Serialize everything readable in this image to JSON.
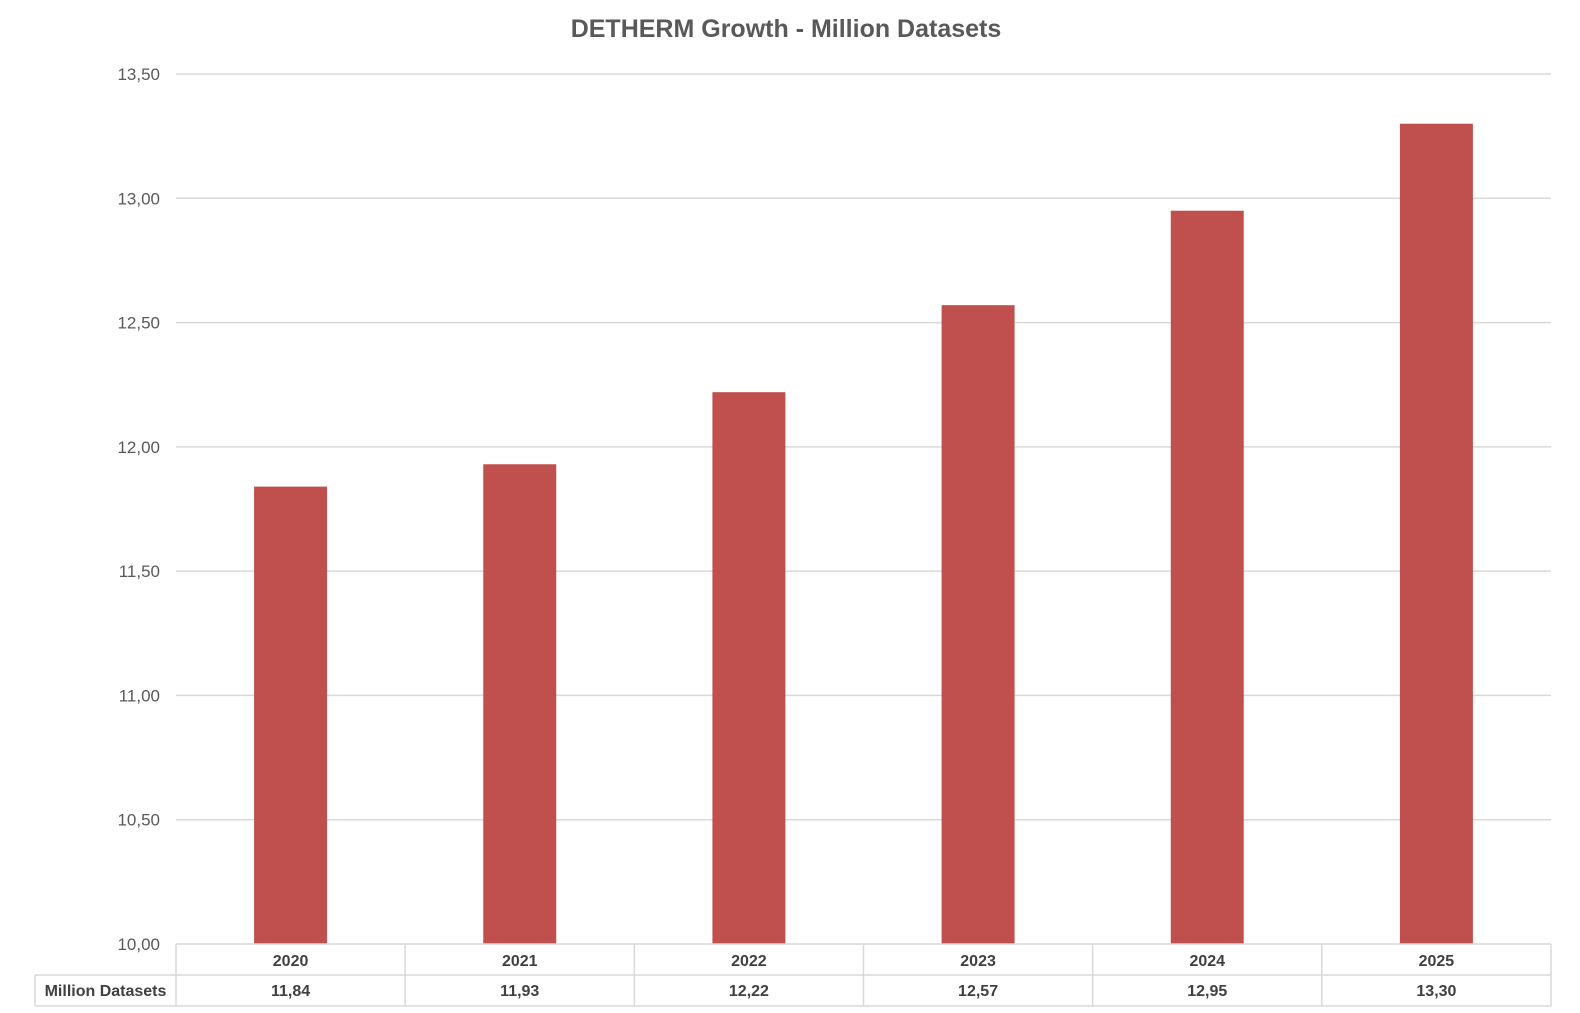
{
  "chart_data": {
    "type": "bar",
    "title": "DETHERM Growth - Million Datasets",
    "categories": [
      "2020",
      "2021",
      "2022",
      "2023",
      "2024",
      "2025"
    ],
    "series": [
      {
        "name": "Million Datasets",
        "values": [
          11.84,
          11.93,
          12.22,
          12.57,
          12.95,
          13.3
        ],
        "labels": [
          "11,84",
          "11,93",
          "12,22",
          "12,57",
          "12,95",
          "13,30"
        ],
        "color": "#c0504d"
      }
    ],
    "ylim": [
      10.0,
      13.5
    ],
    "y_ticks": [
      {
        "value": 10.0,
        "label": "10,00"
      },
      {
        "value": 10.5,
        "label": "10,50"
      },
      {
        "value": 11.0,
        "label": "11,00"
      },
      {
        "value": 11.5,
        "label": "11,50"
      },
      {
        "value": 12.0,
        "label": "12,00"
      },
      {
        "value": 12.5,
        "label": "12,50"
      },
      {
        "value": 13.0,
        "label": "13,00"
      },
      {
        "value": 13.5,
        "label": "13,50"
      }
    ],
    "xlabel": "",
    "ylabel": "",
    "grid": true,
    "legend": "data-table",
    "data_table": true
  }
}
